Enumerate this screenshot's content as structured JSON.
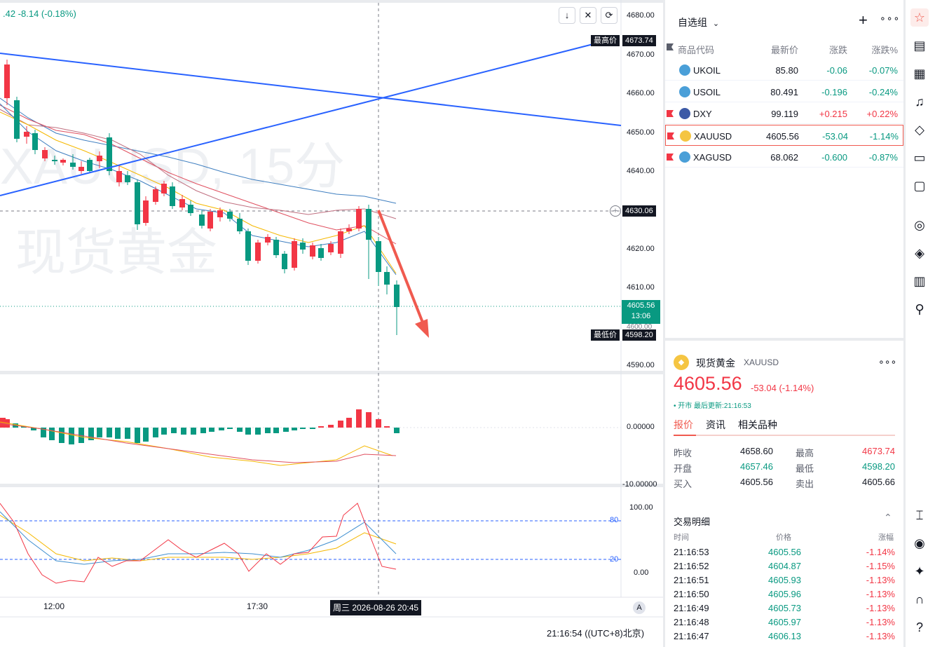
{
  "chart": {
    "header_change": ".42  -8.14 (-0.18%)",
    "watermark_line1": "XAUUSD, 15分",
    "watermark_line2": "现货黄金",
    "price_axis": [
      "4680.00",
      "4670.00",
      "4660.00",
      "4650.00",
      "4640.00",
      "4630.00",
      "4620.00",
      "4610.00",
      "4600.00",
      "4590.00"
    ],
    "high_label": "最高价",
    "high_value": "4673.74",
    "crosshair_price": "4630.06",
    "current_price": "4605.56",
    "countdown": "13:06",
    "low_label": "最低价",
    "low_value": "4598.20",
    "macd_axis": [
      "0.00000",
      "-10.00000"
    ],
    "stoch_axis": [
      "100.00",
      "80",
      "20",
      "0.00"
    ],
    "time_labels": [
      "12:00",
      "17:30"
    ],
    "crosshair_time": "周三 2026-08-26  20:45",
    "auto_scale": "A",
    "clock": "21:16:54  ((UTC+8)北京)"
  },
  "watchlist": {
    "title": "自选组",
    "columns": [
      "商品代码",
      "最新价",
      "涨跌",
      "涨跌%"
    ],
    "rows": [
      {
        "symbol": "UKOIL",
        "price": "85.80",
        "change": "-0.06",
        "pct": "-0.07%",
        "dir": "down"
      },
      {
        "symbol": "USOIL",
        "price": "80.491",
        "change": "-0.196",
        "pct": "-0.24%",
        "dir": "down"
      },
      {
        "symbol": "DXY",
        "price": "99.119",
        "change": "+0.215",
        "pct": "+0.22%",
        "dir": "up"
      },
      {
        "symbol": "XAUUSD",
        "price": "4605.56",
        "change": "-53.04",
        "pct": "-1.14%",
        "dir": "down"
      },
      {
        "symbol": "XAGUSD",
        "price": "68.062",
        "change": "-0.600",
        "pct": "-0.87%",
        "dir": "down"
      }
    ]
  },
  "detail": {
    "name": "现货黄金",
    "symbol": "XAUUSD",
    "price": "4605.56",
    "change": "-53.04 (-1.14%)",
    "status": "• 开市  最后更新:21:16:53",
    "tabs": [
      "报价",
      "资讯",
      "相关品种"
    ],
    "stats": [
      {
        "label": "昨收",
        "value": "4658.60",
        "label2": "最高",
        "value2": "4673.74"
      },
      {
        "label": "开盘",
        "value": "4657.46",
        "label2": "最低",
        "value2": "4598.20"
      },
      {
        "label": "买入",
        "value": "4605.56",
        "label2": "卖出",
        "value2": "4605.66"
      }
    ],
    "trades_title": "交易明细",
    "trade_columns": [
      "时间",
      "价格",
      "涨幅"
    ],
    "trades": [
      {
        "time": "21:16:53",
        "price": "4605.56",
        "pct": "-1.14%"
      },
      {
        "time": "21:16:52",
        "price": "4604.87",
        "pct": "-1.15%"
      },
      {
        "time": "21:16:51",
        "price": "4605.93",
        "pct": "-1.13%"
      },
      {
        "time": "21:16:50",
        "price": "4605.96",
        "pct": "-1.13%"
      },
      {
        "time": "21:16:49",
        "price": "4605.73",
        "pct": "-1.13%"
      },
      {
        "time": "21:16:48",
        "price": "4605.97",
        "pct": "-1.13%"
      },
      {
        "time": "21:16:47",
        "price": "4606.13",
        "pct": "-1.13%"
      }
    ]
  },
  "colors": {
    "up": "#f23645",
    "down": "#089981",
    "trend": "#2962ff",
    "arrow": "#f05a4f"
  }
}
